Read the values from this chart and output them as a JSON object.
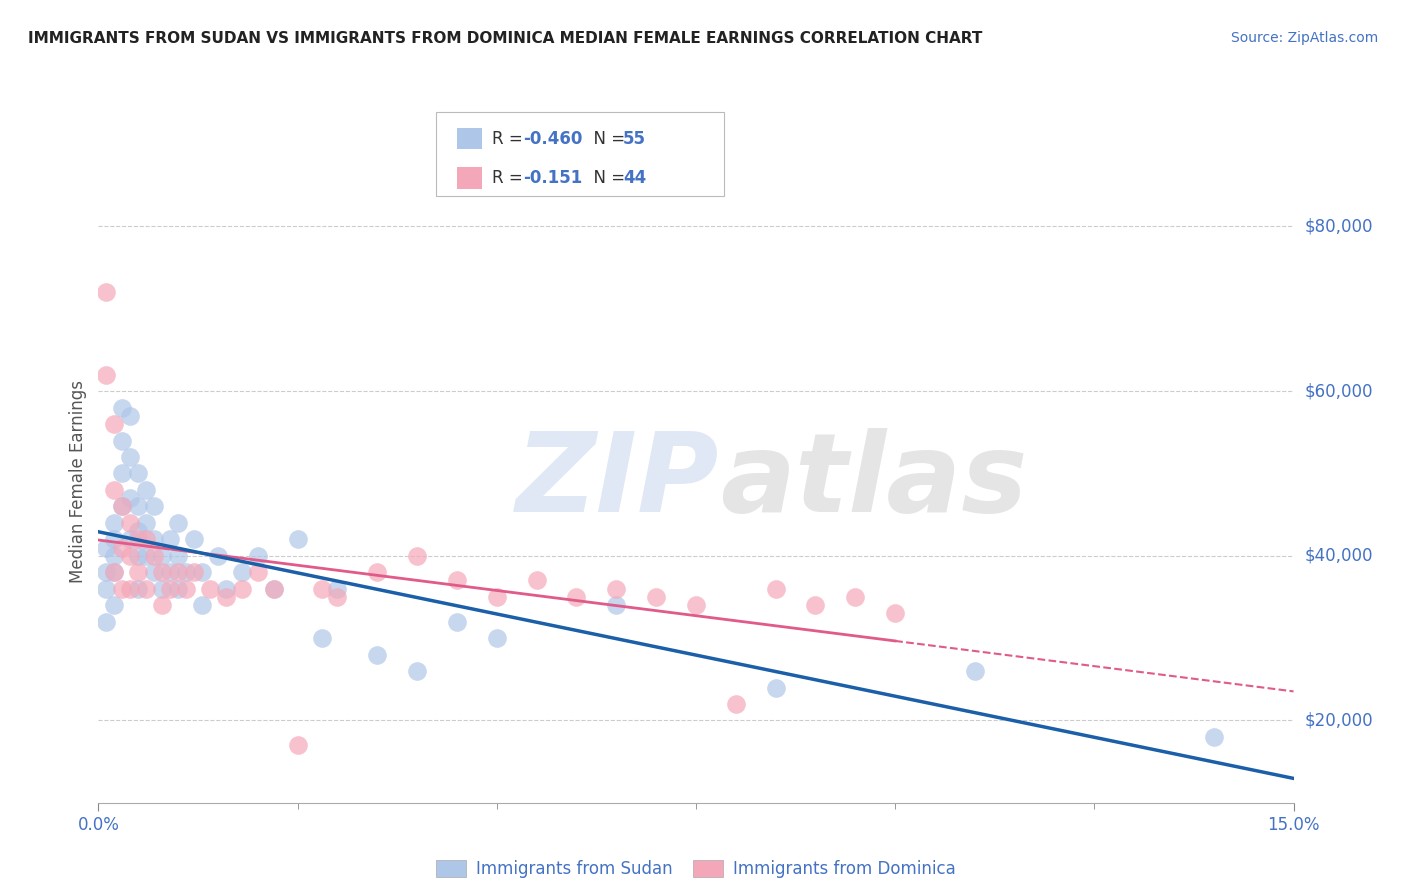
{
  "title": "IMMIGRANTS FROM SUDAN VS IMMIGRANTS FROM DOMINICA MEDIAN FEMALE EARNINGS CORRELATION CHART",
  "source": "Source: ZipAtlas.com",
  "ylabel": "Median Female Earnings",
  "y_ticks": [
    20000,
    40000,
    60000,
    80000
  ],
  "y_tick_labels": [
    "$20,000",
    "$40,000",
    "$60,000",
    "$80,000"
  ],
  "xlim": [
    0.0,
    0.15
  ],
  "ylim": [
    10000,
    88000
  ],
  "sudan_R": -0.46,
  "sudan_N": 55,
  "dominica_R": -0.151,
  "dominica_N": 44,
  "sudan_color": "#aec6e8",
  "dominica_color": "#f4a7b9",
  "sudan_line_color": "#1a5fa8",
  "dominica_line_color": "#e05a8a",
  "background_color": "#ffffff",
  "sudan_x": [
    0.001,
    0.001,
    0.001,
    0.001,
    0.002,
    0.002,
    0.002,
    0.002,
    0.002,
    0.003,
    0.003,
    0.003,
    0.003,
    0.004,
    0.004,
    0.004,
    0.004,
    0.005,
    0.005,
    0.005,
    0.005,
    0.005,
    0.006,
    0.006,
    0.006,
    0.007,
    0.007,
    0.007,
    0.008,
    0.008,
    0.009,
    0.009,
    0.01,
    0.01,
    0.01,
    0.011,
    0.012,
    0.013,
    0.013,
    0.015,
    0.016,
    0.018,
    0.02,
    0.022,
    0.025,
    0.028,
    0.03,
    0.035,
    0.04,
    0.045,
    0.05,
    0.065,
    0.085,
    0.11,
    0.14
  ],
  "sudan_y": [
    41000,
    38000,
    36000,
    32000,
    44000,
    42000,
    40000,
    38000,
    34000,
    58000,
    54000,
    50000,
    46000,
    57000,
    52000,
    47000,
    42000,
    50000,
    46000,
    43000,
    40000,
    36000,
    48000,
    44000,
    40000,
    46000,
    42000,
    38000,
    40000,
    36000,
    42000,
    38000,
    44000,
    40000,
    36000,
    38000,
    42000,
    38000,
    34000,
    40000,
    36000,
    38000,
    40000,
    36000,
    42000,
    30000,
    36000,
    28000,
    26000,
    32000,
    30000,
    34000,
    24000,
    26000,
    18000
  ],
  "dominica_x": [
    0.001,
    0.001,
    0.002,
    0.002,
    0.002,
    0.003,
    0.003,
    0.003,
    0.004,
    0.004,
    0.004,
    0.005,
    0.005,
    0.006,
    0.006,
    0.007,
    0.008,
    0.008,
    0.009,
    0.01,
    0.011,
    0.012,
    0.014,
    0.016,
    0.018,
    0.02,
    0.022,
    0.025,
    0.028,
    0.03,
    0.035,
    0.04,
    0.045,
    0.05,
    0.055,
    0.06,
    0.065,
    0.07,
    0.075,
    0.08,
    0.085,
    0.09,
    0.095,
    0.1
  ],
  "dominica_y": [
    72000,
    62000,
    56000,
    48000,
    38000,
    46000,
    41000,
    36000,
    44000,
    40000,
    36000,
    42000,
    38000,
    42000,
    36000,
    40000,
    38000,
    34000,
    36000,
    38000,
    36000,
    38000,
    36000,
    35000,
    36000,
    38000,
    36000,
    17000,
    36000,
    35000,
    38000,
    40000,
    37000,
    35000,
    37000,
    35000,
    36000,
    35000,
    34000,
    22000,
    36000,
    34000,
    35000,
    33000
  ]
}
